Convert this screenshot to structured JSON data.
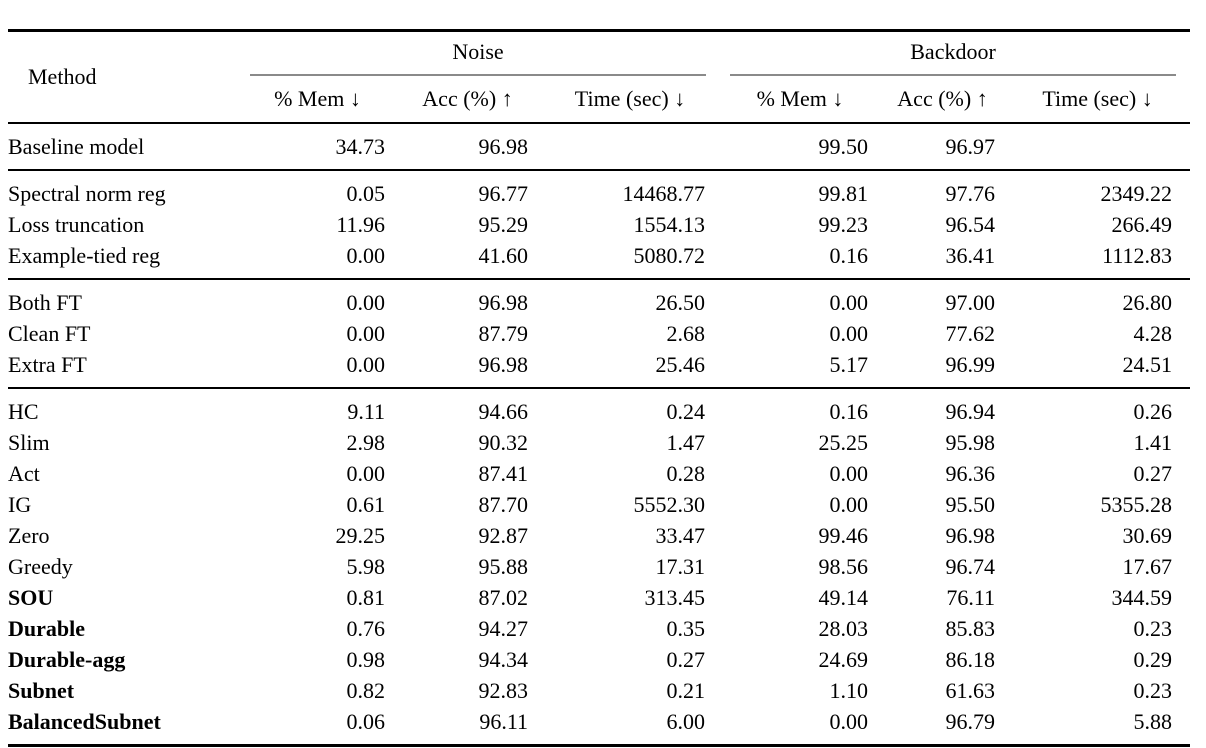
{
  "colors": {
    "background": "#ffffff",
    "text": "#000000",
    "rule": "#000000",
    "cmidrule": "#8a8a8a"
  },
  "table": {
    "header": {
      "method": "Method",
      "groups": [
        {
          "label": "Noise",
          "cols": [
            "% Mem ↓",
            "Acc (%) ↑",
            "Time (sec) ↓"
          ]
        },
        {
          "label": "Backdoor",
          "cols": [
            "% Mem ↓",
            "Acc (%) ↑",
            "Time (sec) ↓"
          ]
        }
      ]
    },
    "groups": [
      {
        "rows": [
          {
            "method": "Baseline model",
            "bold": false,
            "values": [
              "34.73",
              "96.98",
              "",
              "99.50",
              "96.97",
              ""
            ]
          }
        ]
      },
      {
        "rows": [
          {
            "method": "Spectral norm reg",
            "bold": false,
            "values": [
              "0.05",
              "96.77",
              "14468.77",
              "99.81",
              "97.76",
              "2349.22"
            ]
          },
          {
            "method": "Loss truncation",
            "bold": false,
            "values": [
              "11.96",
              "95.29",
              "1554.13",
              "99.23",
              "96.54",
              "266.49"
            ]
          },
          {
            "method": "Example-tied reg",
            "bold": false,
            "values": [
              "0.00",
              "41.60",
              "5080.72",
              "0.16",
              "36.41",
              "1112.83"
            ]
          }
        ]
      },
      {
        "rows": [
          {
            "method": "Both FT",
            "bold": false,
            "values": [
              "0.00",
              "96.98",
              "26.50",
              "0.00",
              "97.00",
              "26.80"
            ]
          },
          {
            "method": "Clean FT",
            "bold": false,
            "values": [
              "0.00",
              "87.79",
              "2.68",
              "0.00",
              "77.62",
              "4.28"
            ]
          },
          {
            "method": "Extra FT",
            "bold": false,
            "values": [
              "0.00",
              "96.98",
              "25.46",
              "5.17",
              "96.99",
              "24.51"
            ]
          }
        ]
      },
      {
        "rows": [
          {
            "method": "HC",
            "bold": false,
            "values": [
              "9.11",
              "94.66",
              "0.24",
              "0.16",
              "96.94",
              "0.26"
            ]
          },
          {
            "method": "Slim",
            "bold": false,
            "values": [
              "2.98",
              "90.32",
              "1.47",
              "25.25",
              "95.98",
              "1.41"
            ]
          },
          {
            "method": "Act",
            "bold": false,
            "values": [
              "0.00",
              "87.41",
              "0.28",
              "0.00",
              "96.36",
              "0.27"
            ]
          },
          {
            "method": "IG",
            "bold": false,
            "values": [
              "0.61",
              "87.70",
              "5552.30",
              "0.00",
              "95.50",
              "5355.28"
            ]
          },
          {
            "method": "Zero",
            "bold": false,
            "values": [
              "29.25",
              "92.87",
              "33.47",
              "99.46",
              "96.98",
              "30.69"
            ]
          },
          {
            "method": "Greedy",
            "bold": false,
            "values": [
              "5.98",
              "95.88",
              "17.31",
              "98.56",
              "96.74",
              "17.67"
            ]
          },
          {
            "method": "SOU",
            "bold": true,
            "values": [
              "0.81",
              "87.02",
              "313.45",
              "49.14",
              "76.11",
              "344.59"
            ]
          },
          {
            "method": "Durable",
            "bold": true,
            "values": [
              "0.76",
              "94.27",
              "0.35",
              "28.03",
              "85.83",
              "0.23"
            ]
          },
          {
            "method": "Durable-agg",
            "bold": true,
            "values": [
              "0.98",
              "94.34",
              "0.27",
              "24.69",
              "86.18",
              "0.29"
            ]
          },
          {
            "method": "Subnet",
            "bold": true,
            "values": [
              "0.82",
              "92.83",
              "0.21",
              "1.10",
              "61.63",
              "0.23"
            ]
          },
          {
            "method": "BalancedSubnet",
            "bold": true,
            "values": [
              "0.06",
              "96.11",
              "6.00",
              "0.00",
              "96.79",
              "5.88"
            ]
          }
        ]
      }
    ]
  }
}
